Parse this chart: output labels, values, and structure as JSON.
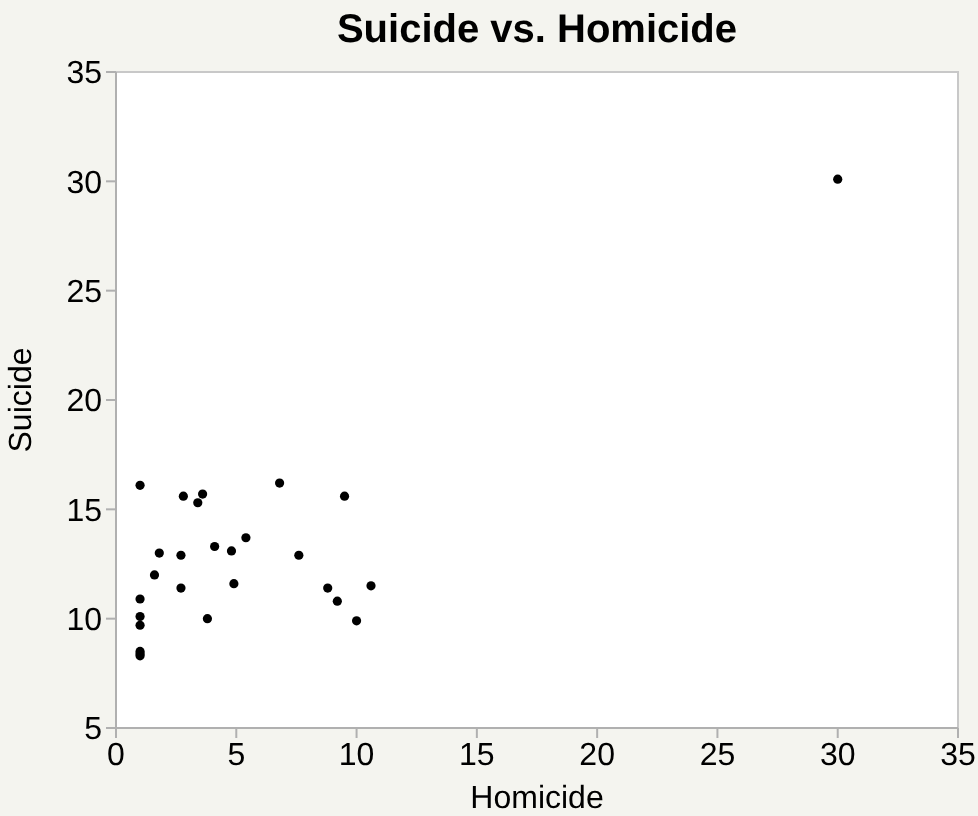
{
  "chart_data": {
    "type": "scatter",
    "title": "Suicide vs. Homicide",
    "xlabel": "Homicide",
    "ylabel": "Suicide",
    "x": [
      1.0,
      2.8,
      3.6,
      3.4,
      6.8,
      9.5,
      5.4,
      4.1,
      4.8,
      1.8,
      2.7,
      7.6,
      1.6,
      2.7,
      4.9,
      8.8,
      10.6,
      9.2,
      1.0,
      3.8,
      10.0,
      1.0,
      1.0,
      1.0,
      1.0,
      1.0,
      30.0
    ],
    "series": [
      {
        "color": "#000000",
        "values": [
          16.1,
          15.6,
          15.7,
          15.3,
          16.2,
          15.6,
          13.7,
          13.3,
          13.1,
          13.0,
          12.9,
          12.9,
          12.0,
          11.4,
          11.6,
          11.4,
          11.5,
          10.8,
          10.9,
          10.0,
          9.9,
          10.1,
          9.7,
          8.5,
          8.4,
          8.3,
          30.1
        ]
      }
    ],
    "xlim": [
      0,
      35
    ],
    "xticks": [
      0,
      5,
      10,
      15,
      20,
      25,
      30,
      35
    ],
    "ylim": [
      5,
      35
    ],
    "yticks": [
      5,
      10,
      15,
      20,
      25,
      30,
      35
    ],
    "legend": false,
    "marker": "circle"
  }
}
